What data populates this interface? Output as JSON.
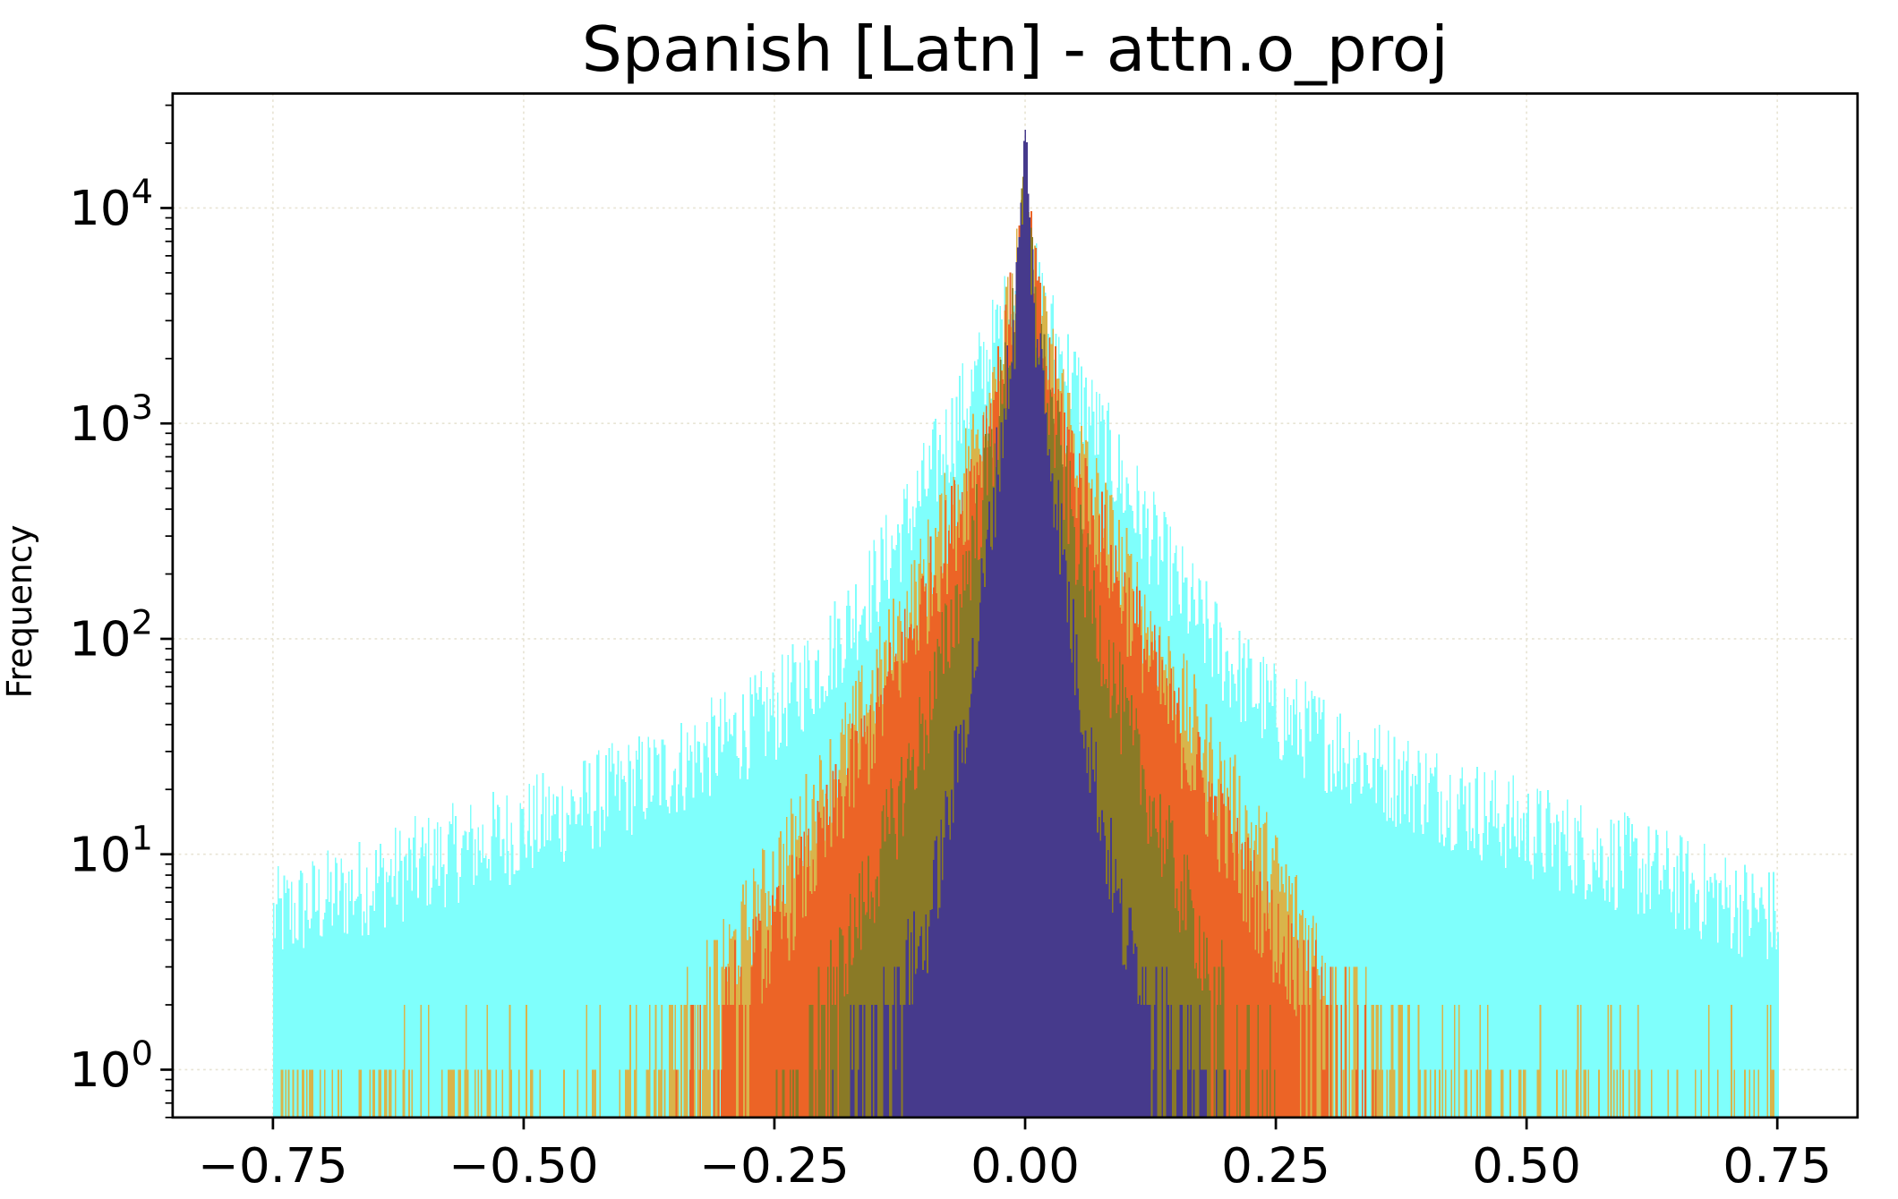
{
  "chart_data": {
    "type": "histogram",
    "title": "Spanish [Latn] - attn.o_proj",
    "xlabel": "",
    "ylabel": "Frequency",
    "yscale": "log",
    "xlim": [
      -0.85,
      0.83
    ],
    "ylim": [
      0.6,
      34000
    ],
    "grid": true,
    "legend": "none",
    "x_ticks": [
      {
        "value": -0.75,
        "label": "−0.75"
      },
      {
        "value": -0.5,
        "label": "−0.50"
      },
      {
        "value": -0.25,
        "label": "−0.25"
      },
      {
        "value": 0.0,
        "label": "0.00"
      },
      {
        "value": 0.25,
        "label": "0.25"
      },
      {
        "value": 0.5,
        "label": "0.50"
      },
      {
        "value": 0.75,
        "label": "0.75"
      }
    ],
    "y_ticks": [
      {
        "value": 1,
        "base": "10",
        "exp": "0"
      },
      {
        "value": 10,
        "base": "10",
        "exp": "1"
      },
      {
        "value": 100,
        "base": "10",
        "exp": "2"
      },
      {
        "value": 1000,
        "base": "10",
        "exp": "3"
      },
      {
        "value": 10000,
        "base": "10",
        "exp": "4"
      }
    ],
    "series": [
      {
        "color": "#7ffffc",
        "range": [
          -0.75,
          0.75
        ],
        "profile": [
          [
            0.0,
            6000
          ],
          [
            0.02,
            3000
          ],
          [
            0.05,
            1500
          ],
          [
            0.1,
            500
          ],
          [
            0.15,
            180
          ],
          [
            0.2,
            80
          ],
          [
            0.25,
            45
          ],
          [
            0.35,
            25
          ],
          [
            0.5,
            13
          ],
          [
            0.6,
            9
          ],
          [
            0.75,
            5
          ]
        ]
      },
      {
        "color": "#d9b44a",
        "range": [
          -0.75,
          0.75
        ],
        "profile": [
          [
            0.0,
            8000
          ],
          [
            0.02,
            2500
          ],
          [
            0.05,
            800
          ],
          [
            0.1,
            200
          ],
          [
            0.15,
            60
          ],
          [
            0.2,
            20
          ],
          [
            0.25,
            8
          ],
          [
            0.3,
            3
          ],
          [
            0.35,
            1.5
          ],
          [
            0.45,
            1
          ],
          [
            0.6,
            1
          ],
          [
            0.75,
            1
          ]
        ]
      },
      {
        "color": "#ec6426",
        "range": [
          -0.35,
          0.35
        ],
        "profile": [
          [
            0.0,
            9000
          ],
          [
            0.02,
            2000
          ],
          [
            0.05,
            600
          ],
          [
            0.1,
            150
          ],
          [
            0.15,
            40
          ],
          [
            0.2,
            12
          ],
          [
            0.25,
            4
          ],
          [
            0.3,
            2
          ],
          [
            0.35,
            1
          ]
        ]
      },
      {
        "color": "#8a7a26",
        "range": [
          -0.25,
          0.25
        ],
        "profile": [
          [
            0.0,
            10000
          ],
          [
            0.02,
            1500
          ],
          [
            0.05,
            300
          ],
          [
            0.1,
            40
          ],
          [
            0.15,
            8
          ],
          [
            0.2,
            2
          ],
          [
            0.25,
            1
          ]
        ]
      },
      {
        "color": "#463a8c",
        "range": [
          -0.2,
          0.2
        ],
        "profile": [
          [
            0.0,
            20000
          ],
          [
            0.01,
            3000
          ],
          [
            0.03,
            500
          ],
          [
            0.05,
            80
          ],
          [
            0.08,
            12
          ],
          [
            0.1,
            4
          ],
          [
            0.15,
            1.5
          ],
          [
            0.2,
            1
          ]
        ]
      }
    ]
  }
}
